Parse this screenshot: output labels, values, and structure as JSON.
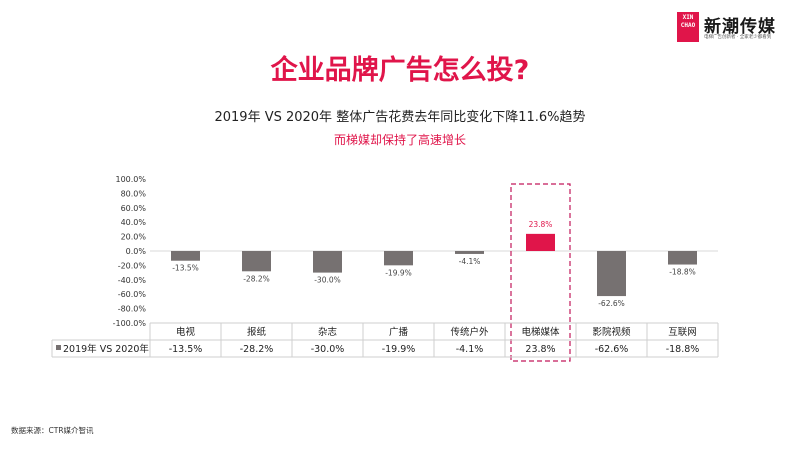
{
  "brand": {
    "logo_text": "XIN CHAO",
    "name": "新潮传媒",
    "tagline": "电梯广告创新者 · 全家老少都看到"
  },
  "page": {
    "title": "企业品牌广告怎么投?",
    "subtitle": "2019年 VS 2020年  整体广告花费去年同比变化下降11.6%趋势",
    "subtitle2": "而梯媒却保持了高速增长",
    "footnote": "数据来源：CTR媒介智讯"
  },
  "colors": {
    "accent": "#e0154a",
    "bar": "#767171",
    "highlight_box": "#c2185b"
  },
  "chart_data": {
    "type": "bar",
    "categories": [
      "电视",
      "报纸",
      "杂志",
      "广播",
      "传统户外",
      "电梯媒体",
      "影院视频",
      "互联网"
    ],
    "series": [
      {
        "name": "2019年 VS 2020年",
        "values": [
          -13.5,
          -28.2,
          -30.0,
          -19.9,
          -4.1,
          23.8,
          -62.6,
          -18.8
        ],
        "labels": [
          "-13.5%",
          "-28.2%",
          "-30.0%",
          "-19.9%",
          "-4.1%",
          "23.8%",
          "-62.6%",
          "-18.8%"
        ]
      }
    ],
    "highlight_category": "电梯媒体",
    "ylim": [
      -100,
      100
    ],
    "yticks": [
      100,
      80,
      60,
      40,
      20,
      0,
      -20,
      -40,
      -60,
      -80,
      -100
    ],
    "ytick_labels": [
      "100.0%",
      "80.0%",
      "60.0%",
      "40.0%",
      "20.0%",
      "0.0%",
      "-20.0%",
      "-40.0%",
      "-60.0%",
      "-80.0%",
      "-100.0%"
    ],
    "legend_position": "bottom-table"
  }
}
